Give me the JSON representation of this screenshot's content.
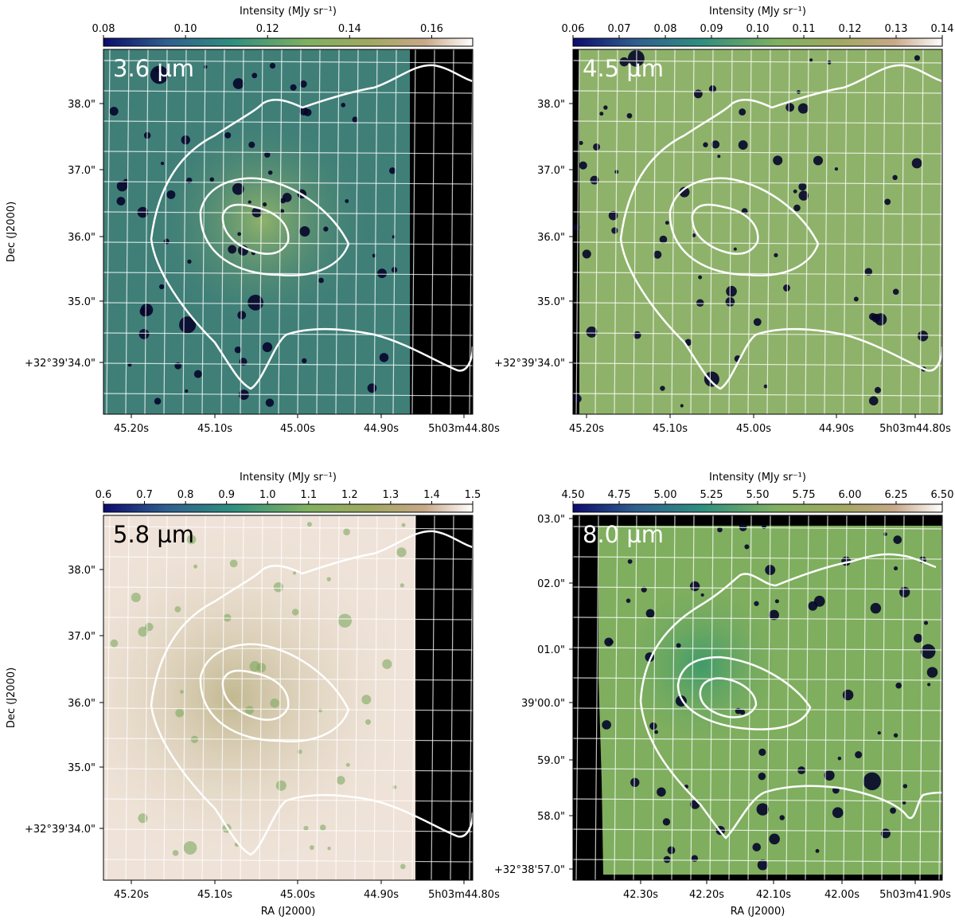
{
  "chart_data": [
    {
      "type": "heatmap",
      "band_label": "3.6 µm",
      "colorbar": {
        "label": "Intensity (MJy sr⁻¹)",
        "range": [
          0.08,
          0.17
        ],
        "ticks": [
          "0.08",
          "0.10",
          "0.12",
          "0.14",
          "0.16"
        ],
        "tick_values": [
          0.08,
          0.1,
          0.12,
          0.14,
          0.16
        ]
      },
      "y_ticks": [
        "38.0\"",
        "37.0\"",
        "36.0\"",
        "35.0\"",
        "+32°39'34.0\""
      ],
      "x_ticks": [
        "45.20s",
        "45.10s",
        "45.00s",
        "44.90s",
        "5h03m44.80s"
      ],
      "ylabel": "Dec (J2000)",
      "xlabel": "",
      "image_colour": "#3f7f78",
      "blank_right": true
    },
    {
      "type": "heatmap",
      "band_label": "4.5 µm",
      "colorbar": {
        "label": "Intensity (MJy sr⁻¹)",
        "range": [
          0.06,
          0.14
        ],
        "ticks": [
          "0.06",
          "0.07",
          "0.08",
          "0.09",
          "0.10",
          "0.11",
          "0.12",
          "0.13",
          "0.14"
        ],
        "tick_values": [
          0.06,
          0.07,
          0.08,
          0.09,
          0.1,
          0.11,
          0.12,
          0.13,
          0.14
        ]
      },
      "y_ticks": [
        "38.0\"",
        "37.0\"",
        "36.0\"",
        "35.0\"",
        "+32°39'34.0\""
      ],
      "x_ticks": [
        "45.20s",
        "45.10s",
        "45.00s",
        "44.90s",
        "5h03m44.80s"
      ],
      "ylabel": "",
      "xlabel": "",
      "image_colour": "#8fb26a",
      "blank_right": false
    },
    {
      "type": "heatmap",
      "band_label": "5.8 µm",
      "colorbar": {
        "label": "Intensity (MJy sr⁻¹)",
        "range": [
          0.6,
          1.5
        ],
        "ticks": [
          "0.6",
          "0.7",
          "0.8",
          "0.9",
          "1.0",
          "1.1",
          "1.2",
          "1.3",
          "1.4",
          "1.5"
        ],
        "tick_values": [
          0.6,
          0.7,
          0.8,
          0.9,
          1.0,
          1.1,
          1.2,
          1.3,
          1.4,
          1.5
        ]
      },
      "y_ticks": [
        "38.0\"",
        "37.0\"",
        "36.0\"",
        "35.0\"",
        "+32°39'34.0\""
      ],
      "x_ticks": [
        "45.20s",
        "45.10s",
        "45.00s",
        "44.90s",
        "5h03m44.80s"
      ],
      "ylabel": "Dec (J2000)",
      "xlabel": "RA (J2000)",
      "image_colour": "#e6d0c0",
      "blank_right": true
    },
    {
      "type": "heatmap",
      "band_label": "8.0 µm",
      "colorbar": {
        "label": "Intensity (MJy sr⁻¹)",
        "range": [
          4.5,
          6.5
        ],
        "ticks": [
          "4.50",
          "4.75",
          "5.00",
          "5.25",
          "5.50",
          "5.75",
          "6.00",
          "6.25",
          "6.50"
        ],
        "tick_values": [
          4.5,
          4.75,
          5.0,
          5.25,
          5.5,
          5.75,
          6.0,
          6.25,
          6.5
        ]
      },
      "y_ticks": [
        "03.0\"",
        "02.0\"",
        "01.0\"",
        "39'00.0\"",
        "59.0\"",
        "58.0\"",
        "+32°38'57.0\""
      ],
      "x_ticks": [
        "42.30s",
        "42.20s",
        "42.10s",
        "42.00s",
        "5h03m41.90s"
      ],
      "ylabel": "",
      "xlabel": "RA (J2000)",
      "image_colour": "#7fae5e",
      "blank_right": false
    }
  ],
  "colors": {
    "cmap": [
      "#0c0c6e",
      "#2f5f8f",
      "#2f8f80",
      "#7fb060",
      "#a0a860",
      "#c8a888",
      "#ffffff"
    ],
    "contour": "#ffffff",
    "grid": "#ffffff",
    "blank": "#000000"
  }
}
